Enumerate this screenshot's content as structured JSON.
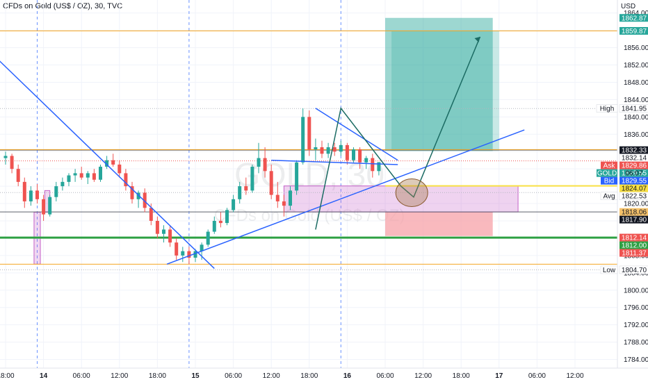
{
  "header": {
    "title": "CFDs on Gold (US$ / OZ), 30, TVC"
  },
  "watermark": {
    "symbol": "GOLD, 30",
    "description": "CFDs on Gold (US$ / OZ)"
  },
  "colors": {
    "up_candle": "#26a69a",
    "down_candle": "#ef5350",
    "trendline": "#2962ff",
    "orange_level": "#f5a623",
    "green_level": "#2ea043",
    "target_zone": "#26a69a",
    "stop_zone": "#f7a1a8",
    "purple_zone": "#c561c8",
    "pattern": "#1b6b63"
  },
  "chart_data": {
    "type": "candlestick",
    "currency": "USD",
    "ylim": [
      1782,
      1867
    ],
    "yticks": [
      1784,
      1788,
      1792,
      1796,
      1800,
      1804,
      1808,
      1812,
      1816,
      1820,
      1824,
      1828,
      1832,
      1836,
      1840,
      1844,
      1848,
      1852,
      1856,
      1860,
      1864
    ],
    "x_labels": [
      {
        "t": 0,
        "label": "18:00",
        "bold": false
      },
      {
        "t": 6,
        "label": "14",
        "bold": true
      },
      {
        "t": 12,
        "label": "06:00",
        "bold": false
      },
      {
        "t": 18,
        "label": "12:00",
        "bold": false
      },
      {
        "t": 24,
        "label": "18:00",
        "bold": false
      },
      {
        "t": 30,
        "label": "15",
        "bold": true
      },
      {
        "t": 36,
        "label": "06:00",
        "bold": false
      },
      {
        "t": 42,
        "label": "12:00",
        "bold": false
      },
      {
        "t": 48,
        "label": "18:00",
        "bold": false
      },
      {
        "t": 54,
        "label": "16",
        "bold": true
      },
      {
        "t": 60,
        "label": "06:00",
        "bold": false
      },
      {
        "t": 66,
        "label": "12:00",
        "bold": false
      },
      {
        "t": 72,
        "label": "18:00",
        "bold": false
      },
      {
        "t": 78,
        "label": "17",
        "bold": true
      },
      {
        "t": 84,
        "label": "06:00",
        "bold": false
      },
      {
        "t": 90,
        "label": "12:00",
        "bold": false
      }
    ],
    "session_lines": [
      5,
      29,
      53
    ],
    "candles": [
      [
        1830.5,
        1832.0,
        1829.0,
        1831.0
      ],
      [
        1831.0,
        1831.5,
        1827.0,
        1828.0
      ],
      [
        1828.0,
        1829.0,
        1824.0,
        1825.0
      ],
      [
        1825.0,
        1826.0,
        1819.0,
        1820.5
      ],
      [
        1820.5,
        1824.0,
        1819.5,
        1823.0
      ],
      [
        1823.0,
        1824.5,
        1820.0,
        1821.0
      ],
      [
        1821.0,
        1822.0,
        1816.0,
        1817.5
      ],
      [
        1817.5,
        1822.0,
        1817.0,
        1821.5
      ],
      [
        1821.5,
        1825.0,
        1820.5,
        1824.0
      ],
      [
        1824.0,
        1826.0,
        1823.0,
        1825.0
      ],
      [
        1825.0,
        1827.0,
        1824.0,
        1826.5
      ],
      [
        1826.5,
        1828.0,
        1825.0,
        1827.0
      ],
      [
        1827.0,
        1828.5,
        1825.5,
        1826.0
      ],
      [
        1826.0,
        1827.5,
        1824.5,
        1827.0
      ],
      [
        1827.0,
        1828.0,
        1825.0,
        1825.5
      ],
      [
        1825.5,
        1829.0,
        1825.0,
        1828.5
      ],
      [
        1828.5,
        1831.0,
        1828.0,
        1830.0
      ],
      [
        1830.0,
        1831.5,
        1828.5,
        1829.0
      ],
      [
        1829.0,
        1830.0,
        1826.0,
        1827.0
      ],
      [
        1827.0,
        1828.0,
        1823.0,
        1824.0
      ],
      [
        1824.0,
        1825.0,
        1820.0,
        1821.0
      ],
      [
        1821.0,
        1823.0,
        1819.0,
        1822.5
      ],
      [
        1822.5,
        1823.5,
        1818.0,
        1819.0
      ],
      [
        1819.0,
        1820.0,
        1815.0,
        1816.0
      ],
      [
        1816.0,
        1817.0,
        1812.0,
        1813.0
      ],
      [
        1813.0,
        1815.0,
        1811.0,
        1814.0
      ],
      [
        1814.0,
        1815.0,
        1810.0,
        1811.0
      ],
      [
        1811.0,
        1812.0,
        1807.0,
        1808.0
      ],
      [
        1808.0,
        1810.0,
        1806.5,
        1809.0
      ],
      [
        1809.0,
        1810.0,
        1806.0,
        1807.5
      ],
      [
        1807.5,
        1809.5,
        1806.5,
        1809.0
      ],
      [
        1809.0,
        1811.0,
        1807.0,
        1810.5
      ],
      [
        1810.5,
        1814.0,
        1810.0,
        1813.5
      ],
      [
        1813.5,
        1817.0,
        1813.0,
        1816.0
      ],
      [
        1816.0,
        1818.0,
        1814.5,
        1815.5
      ],
      [
        1815.5,
        1819.0,
        1815.0,
        1818.5
      ],
      [
        1818.5,
        1822.0,
        1818.0,
        1821.0
      ],
      [
        1821.0,
        1825.0,
        1820.0,
        1824.0
      ],
      [
        1824.0,
        1826.0,
        1822.0,
        1823.0
      ],
      [
        1823.0,
        1829.0,
        1822.5,
        1828.5
      ],
      [
        1828.5,
        1834.0,
        1827.0,
        1830.5
      ],
      [
        1830.5,
        1833.0,
        1826.0,
        1827.5
      ],
      [
        1827.5,
        1829.0,
        1821.0,
        1822.0
      ],
      [
        1822.0,
        1825.0,
        1819.0,
        1820.5
      ],
      [
        1820.5,
        1822.0,
        1817.0,
        1819.5
      ],
      [
        1819.5,
        1824.0,
        1818.5,
        1823.0
      ],
      [
        1823.0,
        1830.0,
        1822.0,
        1829.5
      ],
      [
        1829.5,
        1842.0,
        1829.0,
        1840.0
      ],
      [
        1840.0,
        1841.5,
        1831.0,
        1832.5
      ],
      [
        1832.5,
        1835.0,
        1830.0,
        1833.0
      ],
      [
        1833.0,
        1834.5,
        1830.5,
        1831.5
      ],
      [
        1831.5,
        1834.0,
        1830.5,
        1833.0
      ],
      [
        1833.0,
        1834.0,
        1831.0,
        1832.0
      ],
      [
        1832.0,
        1834.5,
        1831.0,
        1833.5
      ],
      [
        1833.5,
        1834.0,
        1829.0,
        1830.0
      ],
      [
        1830.0,
        1833.0,
        1829.5,
        1832.5
      ],
      [
        1832.5,
        1833.0,
        1828.0,
        1829.5
      ],
      [
        1829.5,
        1831.0,
        1828.0,
        1830.5
      ],
      [
        1830.5,
        1831.5,
        1826.0,
        1827.5
      ],
      [
        1827.5,
        1829.5,
        1826.5,
        1829.55
      ]
    ],
    "levels": {
      "target": 1859.87,
      "target_top": 1862.87,
      "high": 1841.95,
      "resistance": 1832.33,
      "entry": 1832.14,
      "ask": 1829.86,
      "last": 1829.55,
      "bid": 1829.55,
      "zone_top": 1824.07,
      "avg": 1822.53,
      "zone_bottom": 1818.06,
      "stop_zone_bottom": 1812.5,
      "support_green": 1812.14,
      "low_level": 1806.0,
      "low": 1804.7
    },
    "annotations": {
      "countdown": "06:07",
      "arrow_target_time": 77
    }
  },
  "price_tags": [
    {
      "key": "target_top",
      "label": "",
      "value": "1862.87",
      "bg": "#26a69a",
      "fg": "#ffffff"
    },
    {
      "key": "target",
      "label": "",
      "value": "1859.87",
      "bg": "#26a69a",
      "fg": "#ffffff"
    },
    {
      "key": "high",
      "label": "High",
      "value": "1841.95",
      "bg": "#ffffff",
      "fg": "#131722"
    },
    {
      "key": "resistance",
      "label": "",
      "value": "1832.33",
      "bg": "#131722",
      "fg": "#ffffff"
    },
    {
      "key": "entry",
      "label": "",
      "value": "1832.14",
      "bg": "#ffffff",
      "fg": "#131722"
    },
    {
      "key": "ask",
      "label": "Ask",
      "value": "1829.86",
      "bg": "#ef5350",
      "fg": "#ffffff"
    },
    {
      "key": "last",
      "label": "GOLD",
      "value": "1829.55",
      "bg": "#26a69a",
      "fg": "#ffffff"
    },
    {
      "key": "bid",
      "label": "Bid",
      "value": "1829.55",
      "bg": "#2962ff",
      "fg": "#ffffff"
    },
    {
      "key": "zone_top",
      "label": "",
      "value": "1824.07",
      "bg": "#f9e043",
      "fg": "#131722"
    },
    {
      "key": "avg",
      "label": "Avg",
      "value": "1822.53",
      "bg": "#ffffff",
      "fg": "#131722"
    },
    {
      "key": "zone_bottom",
      "label": "",
      "value": "1818.06",
      "bg": "#f5c26b",
      "fg": "#131722"
    },
    {
      "key": "entry_low",
      "label": "",
      "value": "1817.90",
      "bg": "#131722",
      "fg": "#ffffff"
    },
    {
      "key": "support_green",
      "label": "",
      "value": "1812.14",
      "bg": "#ef5350",
      "fg": "#ffffff"
    },
    {
      "key": "green",
      "label": "",
      "value": "1812.00",
      "bg": "#2ea043",
      "fg": "#ffffff"
    },
    {
      "key": "stop",
      "label": "",
      "value": "1811.37",
      "bg": "#ef5350",
      "fg": "#ffffff"
    },
    {
      "key": "low",
      "label": "Low",
      "value": "1804.70",
      "bg": "#ffffff",
      "fg": "#131722"
    }
  ]
}
